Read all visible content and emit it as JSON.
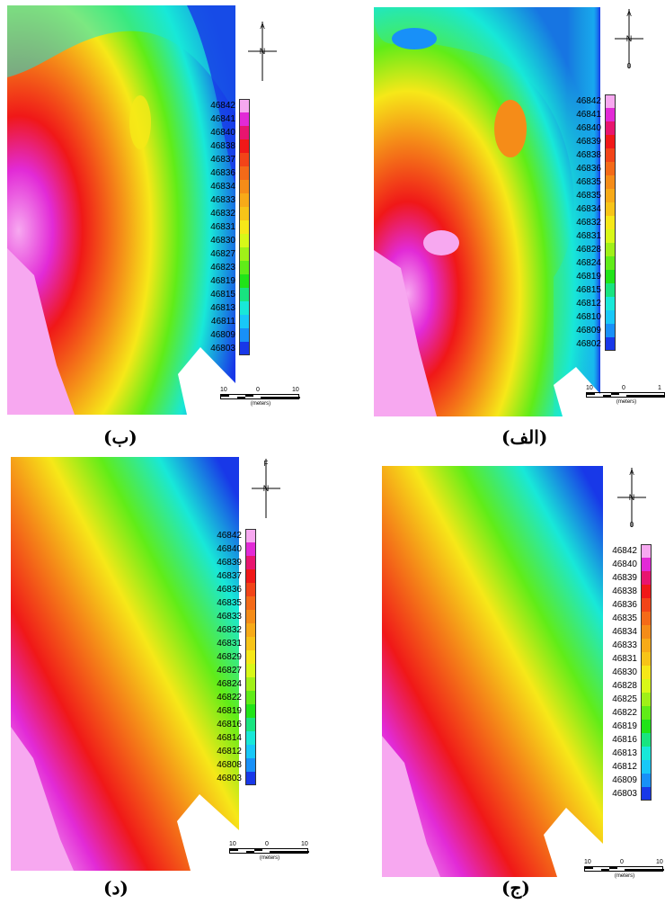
{
  "panels": [
    {
      "id": "alef",
      "caption": "(الف)",
      "legend_values": [
        "46842",
        "46841",
        "46840",
        "46839",
        "46838",
        "46836",
        "46835",
        "46835",
        "46834",
        "46832",
        "46831",
        "46828",
        "46824",
        "46819",
        "46815",
        "46812",
        "46810",
        "46809",
        "46802"
      ],
      "scale": {
        "left": "10",
        "mid": "0",
        "right": "1",
        "unit": "(meters)"
      },
      "north": {
        "top": "A",
        "bottom": "0",
        "mid": "N"
      }
    },
    {
      "id": "be",
      "caption": "(ب)",
      "legend_values": [
        "46842",
        "46841",
        "46840",
        "46838",
        "46837",
        "46836",
        "46834",
        "46833",
        "46832",
        "46831",
        "46830",
        "46827",
        "46823",
        "46819",
        "46815",
        "46813",
        "46811",
        "46809",
        "46803"
      ],
      "scale": {
        "left": "10",
        "mid": "0",
        "right": "10",
        "unit": "(meters)"
      },
      "north": {
        "top": "A",
        "bottom": "I",
        "mid": "N"
      }
    },
    {
      "id": "jim",
      "caption": "(ج)",
      "legend_values": [
        "46842",
        "46840",
        "46839",
        "46838",
        "46836",
        "46835",
        "46834",
        "46833",
        "46831",
        "46830",
        "46828",
        "46825",
        "46822",
        "46819",
        "46816",
        "46813",
        "46812",
        "46809",
        "46803"
      ],
      "scale": {
        "left": "10",
        "mid": "0",
        "right": "10",
        "unit": "(meters)"
      },
      "north": {
        "top": "A",
        "bottom": "0",
        "mid": "N"
      }
    },
    {
      "id": "dal",
      "caption": "(د)",
      "legend_values": [
        "46842",
        "46840",
        "46839",
        "46837",
        "46836",
        "46835",
        "46833",
        "46832",
        "46831",
        "46829",
        "46827",
        "46824",
        "46822",
        "46819",
        "46816",
        "46814",
        "46812",
        "46808",
        "46803"
      ],
      "scale": {
        "left": "10",
        "mid": "0",
        "right": "10",
        "unit": "(meters)"
      },
      "north": {
        "top": "F",
        "bottom": "I",
        "mid": "N"
      }
    }
  ],
  "legend_colors": [
    "#f7a8f0",
    "#e22ad6",
    "#e8156f",
    "#f01818",
    "#f24418",
    "#f46a18",
    "#f58c18",
    "#f7aa18",
    "#f7c418",
    "#f6e818",
    "#d8f818",
    "#a0f018",
    "#60ec18",
    "#20e418",
    "#18e480",
    "#18e8d8",
    "#18c8f8",
    "#1890f8",
    "#1838e8"
  ],
  "map_colors": {
    "magenta_light": "#f7a8f0",
    "magenta": "#e22ad6",
    "red": "#f01818",
    "orange": "#f58c18",
    "yellow": "#f6e818",
    "green": "#60ec18",
    "cyan": "#18e8d8",
    "blue": "#1838e8"
  }
}
